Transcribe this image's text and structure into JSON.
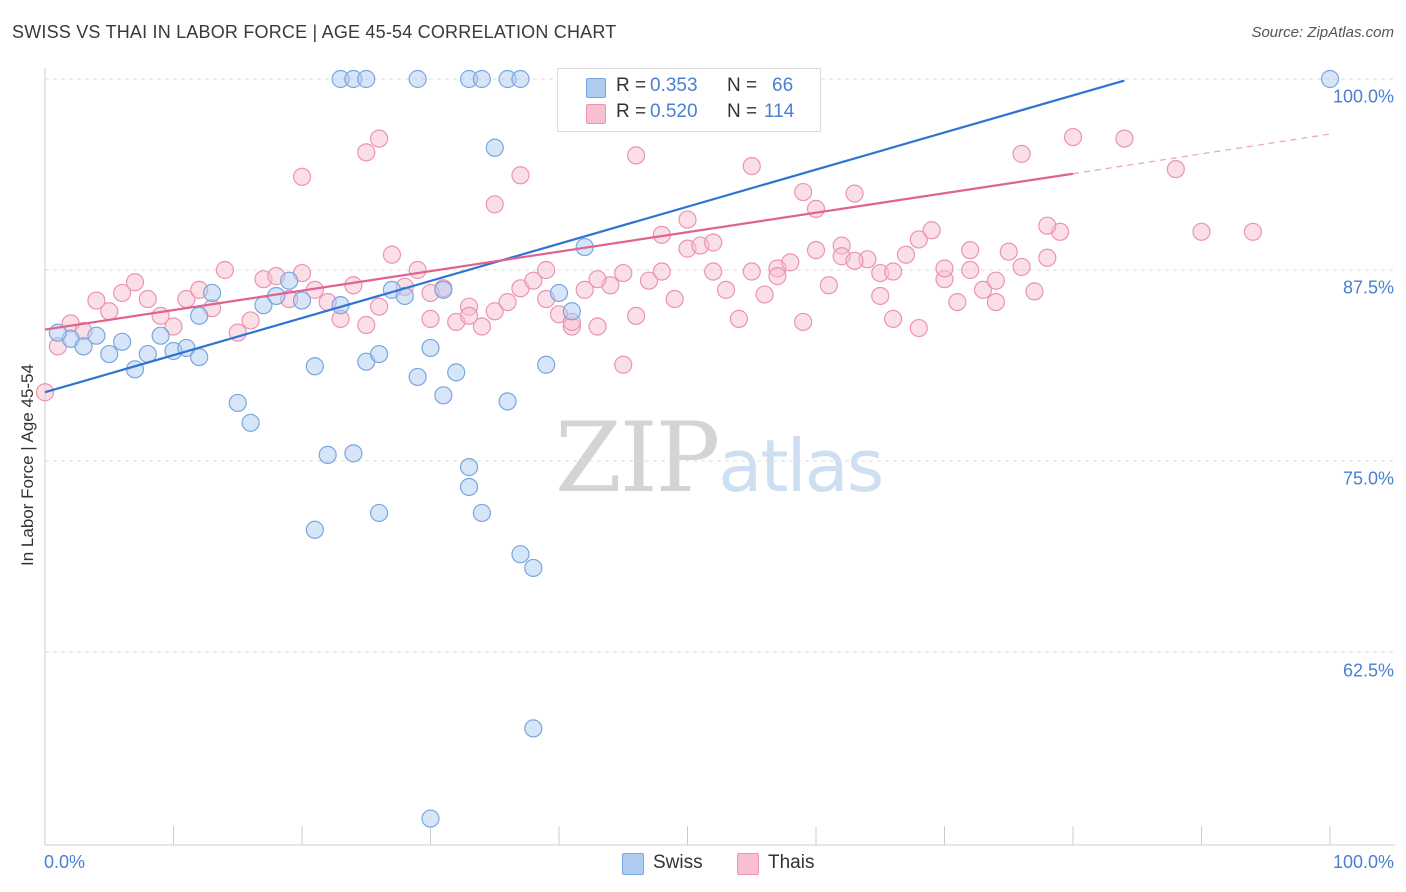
{
  "header": {
    "title": "SWISS VS THAI IN LABOR FORCE | AGE 45-54 CORRELATION CHART",
    "source": "Source: ZipAtlas.com"
  },
  "legend": {
    "swiss": {
      "r_label": "R =",
      "r_value": "0.353",
      "n_label": "N =",
      "n_value": "66"
    },
    "thais": {
      "r_label": "R =",
      "r_value": "0.520",
      "n_label": "N =",
      "n_value": "114"
    }
  },
  "bottom_legend": {
    "swiss": "Swiss",
    "thais": "Thais"
  },
  "axes": {
    "ylabel": "In Labor Force | Age 45-54",
    "y_ticks": [
      "100.0%",
      "87.5%",
      "75.0%",
      "62.5%"
    ],
    "x_left": "0.0%",
    "x_right": "100.0%"
  },
  "watermark": {
    "zip": "ZIP",
    "atlas": "atlas"
  },
  "colors": {
    "swiss_fill": "#aecbf0",
    "swiss_stroke": "#7aa6e0",
    "swiss_line": "#2f74d0",
    "thais_fill": "#f7bfd0",
    "thais_stroke": "#ec93b2",
    "thais_line": "#e0638f",
    "tick_text": "#4a7fd4",
    "grid": "#dddddd"
  },
  "chart_data": {
    "type": "scatter",
    "xlim": [
      0,
      100
    ],
    "ylim": [
      51.6,
      101.6
    ],
    "grid": true,
    "legend_position": "top-center",
    "series": [
      {
        "name": "Swiss",
        "trend": {
          "x0": 0,
          "y0": 79.5,
          "x1": 84,
          "y1": 99.9
        },
        "points": [
          [
            2,
            83
          ],
          [
            1,
            83.4
          ],
          [
            3,
            82.5
          ],
          [
            5,
            82
          ],
          [
            4,
            83.2
          ],
          [
            6,
            82.8
          ],
          [
            7,
            81
          ],
          [
            8,
            82
          ],
          [
            9,
            83.2
          ],
          [
            10,
            82.2
          ],
          [
            11,
            82.4
          ],
          [
            12,
            84.5
          ],
          [
            13,
            86
          ],
          [
            12,
            81.8
          ],
          [
            15,
            78.8
          ],
          [
            16,
            77.5
          ],
          [
            17,
            85.2
          ],
          [
            18,
            85.8
          ],
          [
            19,
            86.8
          ],
          [
            20,
            85.5
          ],
          [
            21,
            81.2
          ],
          [
            22,
            75.4
          ],
          [
            23,
            85.2
          ],
          [
            24,
            75.5
          ],
          [
            25,
            81.5
          ],
          [
            26,
            82
          ],
          [
            26,
            71.6
          ],
          [
            27,
            86.2
          ],
          [
            28,
            85.8
          ],
          [
            29,
            80.5
          ],
          [
            30,
            82.4
          ],
          [
            31,
            86.2
          ],
          [
            31,
            79.3
          ],
          [
            32,
            80.8
          ],
          [
            33,
            74.6
          ],
          [
            34,
            71.6
          ],
          [
            35,
            95.5
          ],
          [
            36,
            78.9
          ],
          [
            37,
            68.9
          ],
          [
            38,
            57.5
          ],
          [
            38,
            68
          ],
          [
            39,
            81.3
          ],
          [
            40,
            86
          ],
          [
            41,
            84.8
          ],
          [
            42,
            89
          ],
          [
            29,
            100
          ],
          [
            23,
            100
          ],
          [
            24,
            100
          ],
          [
            25,
            100
          ],
          [
            33,
            100
          ],
          [
            36,
            100
          ],
          [
            37,
            100
          ],
          [
            34,
            100
          ],
          [
            42,
            100
          ],
          [
            44,
            100
          ],
          [
            45,
            100
          ],
          [
            47,
            100
          ],
          [
            48,
            100
          ],
          [
            50,
            100
          ],
          [
            52,
            100
          ],
          [
            53,
            100
          ],
          [
            55,
            100
          ],
          [
            21,
            70.5
          ],
          [
            30,
            51.6
          ],
          [
            33,
            73.3
          ],
          [
            100,
            100
          ]
        ]
      },
      {
        "name": "Thais",
        "trend": {
          "x0": 0,
          "y0": 83.6,
          "x1": 80,
          "y1": 93.8,
          "dash_x1": 100,
          "dash_y1": 96.4
        },
        "points": [
          [
            0,
            79.5
          ],
          [
            1,
            82.5
          ],
          [
            2,
            84
          ],
          [
            3,
            83.5
          ],
          [
            4,
            85.5
          ],
          [
            5,
            84.8
          ],
          [
            6,
            86
          ],
          [
            7,
            86.7
          ],
          [
            8,
            85.6
          ],
          [
            9,
            84.5
          ],
          [
            10,
            83.8
          ],
          [
            11,
            85.6
          ],
          [
            12,
            86.2
          ],
          [
            13,
            85
          ],
          [
            14,
            87.5
          ],
          [
            15,
            83.4
          ],
          [
            16,
            84.2
          ],
          [
            17,
            86.9
          ],
          [
            18,
            87.1
          ],
          [
            19,
            85.6
          ],
          [
            20,
            87.3
          ],
          [
            21,
            86.2
          ],
          [
            22,
            85.4
          ],
          [
            23,
            84.3
          ],
          [
            24,
            86.5
          ],
          [
            25,
            83.9
          ],
          [
            26,
            85.1
          ],
          [
            27,
            88.5
          ],
          [
            28,
            86.4
          ],
          [
            29,
            87.5
          ],
          [
            30,
            84.3
          ],
          [
            31,
            86.3
          ],
          [
            32,
            84.1
          ],
          [
            33,
            85.1
          ],
          [
            34,
            83.8
          ],
          [
            35,
            84.8
          ],
          [
            36,
            85.4
          ],
          [
            37,
            86.3
          ],
          [
            38,
            86.8
          ],
          [
            39,
            85.6
          ],
          [
            40,
            84.6
          ],
          [
            41,
            83.8
          ],
          [
            42,
            86.2
          ],
          [
            43,
            83.8
          ],
          [
            44,
            86.5
          ],
          [
            45,
            81.3
          ],
          [
            46,
            84.5
          ],
          [
            47,
            86.8
          ],
          [
            48,
            87.4
          ],
          [
            49,
            85.6
          ],
          [
            50,
            88.9
          ],
          [
            51,
            89.1
          ],
          [
            52,
            89.3
          ],
          [
            53,
            86.2
          ],
          [
            54,
            84.3
          ],
          [
            55,
            87.4
          ],
          [
            56,
            85.9
          ],
          [
            57,
            87.6
          ],
          [
            58,
            88
          ],
          [
            59,
            84.1
          ],
          [
            60,
            91.5
          ],
          [
            61,
            86.5
          ],
          [
            62,
            89.1
          ],
          [
            63,
            92.5
          ],
          [
            64,
            88.2
          ],
          [
            65,
            87.3
          ],
          [
            66,
            87.4
          ],
          [
            67,
            88.5
          ],
          [
            68,
            89.5
          ],
          [
            69,
            90.1
          ],
          [
            70,
            86.9
          ],
          [
            71,
            85.4
          ],
          [
            72,
            87.5
          ],
          [
            73,
            86.2
          ],
          [
            74,
            86.8
          ],
          [
            75,
            88.7
          ],
          [
            76,
            87.7
          ],
          [
            77,
            86.1
          ],
          [
            78,
            88.3
          ],
          [
            79,
            90
          ],
          [
            20,
            93.6
          ],
          [
            25,
            95.2
          ],
          [
            26,
            96.1
          ],
          [
            30,
            86
          ],
          [
            33,
            84.5
          ],
          [
            35,
            91.8
          ],
          [
            37,
            93.7
          ],
          [
            39,
            87.5
          ],
          [
            41,
            84.1
          ],
          [
            43,
            86.9
          ],
          [
            45,
            87.3
          ],
          [
            46,
            95
          ],
          [
            48,
            89.8
          ],
          [
            50,
            90.8
          ],
          [
            52,
            87.4
          ],
          [
            55,
            94.3
          ],
          [
            57,
            87.1
          ],
          [
            59,
            92.6
          ],
          [
            60,
            88.8
          ],
          [
            62,
            88.4
          ],
          [
            63,
            88.1
          ],
          [
            65,
            85.8
          ],
          [
            66,
            84.3
          ],
          [
            68,
            83.7
          ],
          [
            70,
            87.6
          ],
          [
            72,
            88.8
          ],
          [
            74,
            85.4
          ],
          [
            76,
            95.1
          ],
          [
            78,
            90.4
          ],
          [
            80,
            96.2
          ],
          [
            84,
            96.1
          ],
          [
            88,
            94.1
          ],
          [
            90,
            90
          ],
          [
            94,
            90
          ]
        ]
      }
    ]
  }
}
